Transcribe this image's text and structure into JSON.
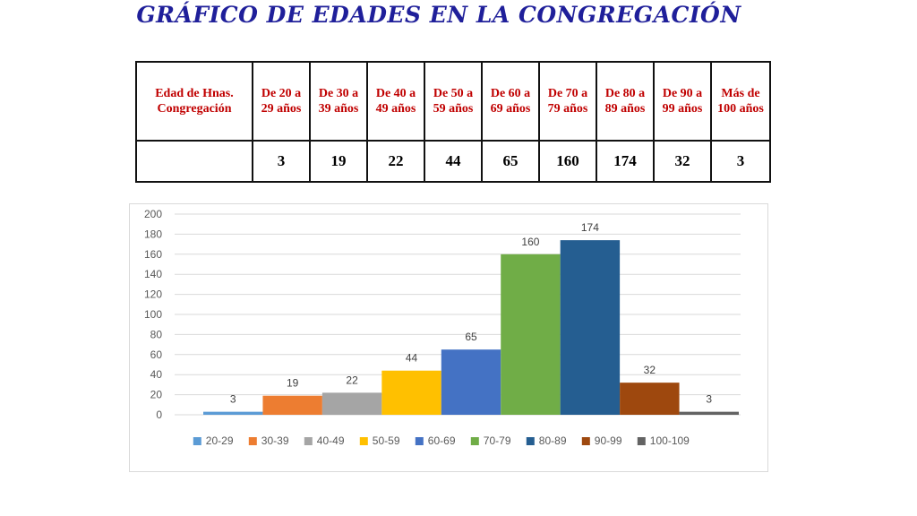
{
  "title": "GRÁFICO DE EDADES EN LA CONGREGACIÓN",
  "table": {
    "header_first": "Edad de Hnas. Congregación",
    "headers": [
      "De 20 a 29 años",
      "De 30 a 39 años",
      "De 40 a 49 años",
      "De 50 a 59 años",
      "De 60 a 69 años",
      "De 70 a 79 años",
      "De 80 a 89 años",
      "De 90 a 99 años",
      "Más de 100 años"
    ],
    "values": [
      "3",
      "19",
      "22",
      "44",
      "65",
      "160",
      "174",
      "32",
      "3"
    ]
  },
  "chart_data": {
    "type": "bar",
    "title": "",
    "xlabel": "",
    "ylabel": "",
    "ylim": [
      0,
      200
    ],
    "yticks": [
      0,
      20,
      40,
      60,
      80,
      100,
      120,
      140,
      160,
      180,
      200
    ],
    "grid": true,
    "legend_position": "bottom",
    "series": [
      {
        "name": "20-29",
        "value": 3,
        "color": "#5b9bd5"
      },
      {
        "name": "30-39",
        "value": 19,
        "color": "#ed7d31"
      },
      {
        "name": "40-49",
        "value": 22,
        "color": "#a5a5a5"
      },
      {
        "name": "50-59",
        "value": 44,
        "color": "#ffc000"
      },
      {
        "name": "60-69",
        "value": 65,
        "color": "#4472c4"
      },
      {
        "name": "70-79",
        "value": 160,
        "color": "#70ad47"
      },
      {
        "name": "80-89",
        "value": 174,
        "color": "#255e91"
      },
      {
        "name": "90-99",
        "value": 32,
        "color": "#9e480e"
      },
      {
        "name": "100-109",
        "value": 3,
        "color": "#636363"
      }
    ]
  }
}
